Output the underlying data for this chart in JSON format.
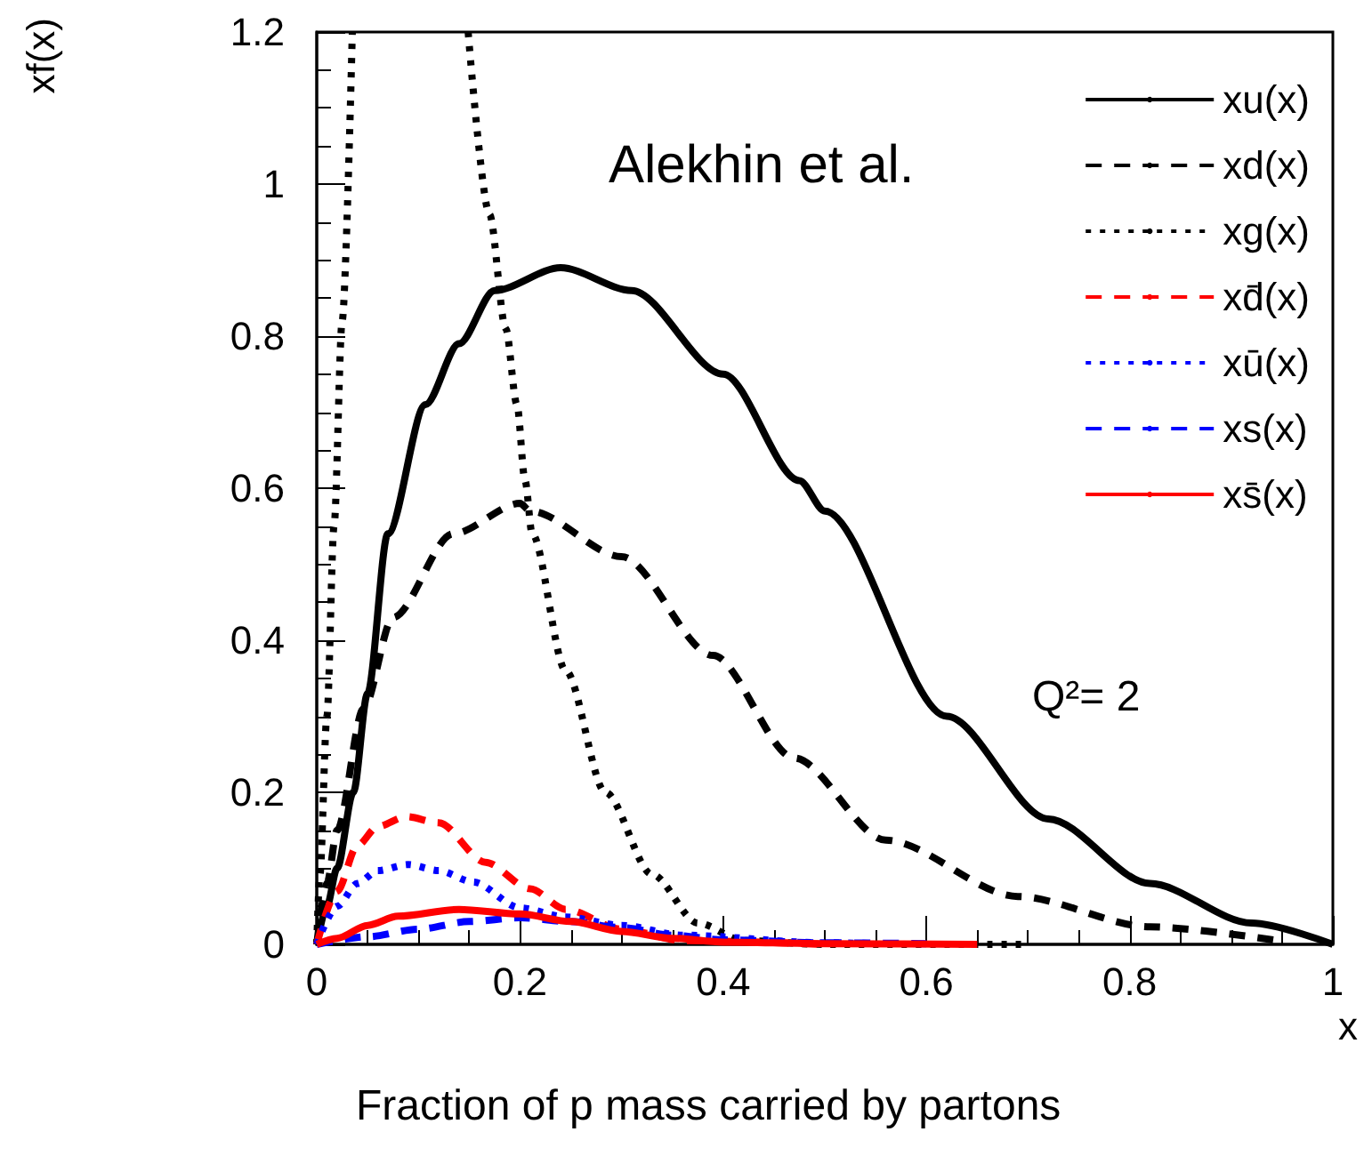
{
  "chart_data": {
    "type": "line",
    "xlabel": "x",
    "ylabel": "xf(x)",
    "annotations": [
      "Alekhin et al.",
      "Q²= 2",
      "Fraction of p mass carried by partons"
    ],
    "xlim": [
      0,
      1
    ],
    "xticks": [
      0,
      0.2,
      0.4,
      0.6,
      0.8,
      1
    ],
    "ylim": [
      0,
      1.2
    ],
    "yticks": [
      0,
      0.2,
      0.4,
      0.6,
      0.8,
      1,
      1.2
    ],
    "grid": false,
    "legend": "top right",
    "marker": "none",
    "series": [
      {
        "name": "xu(x)",
        "color": "#000000",
        "line_style": "solid",
        "x": [
          0,
          0.01,
          0.02,
          0.036,
          0.05,
          0.07,
          0.107,
          0.14,
          0.175,
          0.24,
          0.31,
          0.4,
          0.475,
          0.5,
          0.62,
          0.72,
          0.82,
          0.92,
          1
        ],
        "values": [
          0,
          0.05,
          0.1,
          0.2,
          0.33,
          0.54,
          0.71,
          0.79,
          0.86,
          0.89,
          0.86,
          0.75,
          0.61,
          0.57,
          0.3,
          0.165,
          0.08,
          0.028,
          0
        ]
      },
      {
        "name": "xd(x)",
        "color": "#000000",
        "line_style": "dashed",
        "x": [
          0,
          0.01,
          0.02,
          0.046,
          0.075,
          0.134,
          0.2,
          0.21,
          0.3,
          0.39,
          0.47,
          0.56,
          0.69,
          0.82,
          0.95
        ],
        "values": [
          0,
          0.08,
          0.15,
          0.31,
          0.43,
          0.54,
          0.58,
          0.57,
          0.51,
          0.38,
          0.245,
          0.137,
          0.063,
          0.023,
          0.004
        ]
      },
      {
        "name": "xg(x)",
        "color": "#000000",
        "line_style": "dotted",
        "x": [
          0,
          0.003,
          0.01,
          0.017,
          0.025,
          0.035,
          0.09,
          0.149,
          0.17,
          0.186,
          0.197,
          0.205,
          0.212,
          0.245,
          0.284,
          0.33,
          0.375,
          0.42,
          0.5,
          0.7
        ],
        "values": [
          0,
          0.09,
          0.3,
          0.55,
          0.82,
          1.2,
          null,
          1.2,
          0.96,
          0.81,
          0.71,
          0.61,
          0.54,
          0.36,
          0.2,
          0.092,
          0.028,
          0.005,
          0,
          0
        ]
      },
      {
        "name": "xd̄(x)",
        "color": "#ff0000",
        "line_style": "dashed",
        "x": [
          0,
          0.02,
          0.04,
          0.06,
          0.088,
          0.12,
          0.166,
          0.21,
          0.245,
          0.3,
          0.36,
          0.5
        ],
        "values": [
          0,
          0.07,
          0.13,
          0.155,
          0.168,
          0.16,
          0.108,
          0.073,
          0.046,
          0.02,
          0.005,
          0
        ]
      },
      {
        "name": "xū(x)",
        "color": "#0000ff",
        "line_style": "dotted",
        "x": [
          0,
          0.02,
          0.04,
          0.06,
          0.09,
          0.12,
          0.154,
          0.2,
          0.245,
          0.3,
          0.36,
          0.5,
          0.55
        ],
        "values": [
          0,
          0.05,
          0.08,
          0.097,
          0.105,
          0.097,
          0.082,
          0.048,
          0.036,
          0.025,
          0.012,
          0.002,
          0.001
        ]
      },
      {
        "name": "xs(x)",
        "color": "#0000ff",
        "line_style": "dashed",
        "x": [
          0,
          0.05,
          0.1,
          0.15,
          0.2,
          0.25,
          0.3,
          0.35,
          0.4,
          0.5,
          0.6
        ],
        "values": [
          0,
          0.01,
          0.02,
          0.03,
          0.035,
          0.03,
          0.022,
          0.012,
          0.006,
          0.002,
          0.001
        ]
      },
      {
        "name": "xs̄(x)",
        "color": "#ff0000",
        "line_style": "solid",
        "x": [
          0,
          0.02,
          0.05,
          0.08,
          0.14,
          0.2,
          0.25,
          0.3,
          0.35,
          0.4,
          0.5,
          0.65
        ],
        "values": [
          0,
          0.008,
          0.025,
          0.037,
          0.046,
          0.04,
          0.03,
          0.017,
          0.008,
          0.003,
          0.001,
          0
        ]
      }
    ]
  }
}
